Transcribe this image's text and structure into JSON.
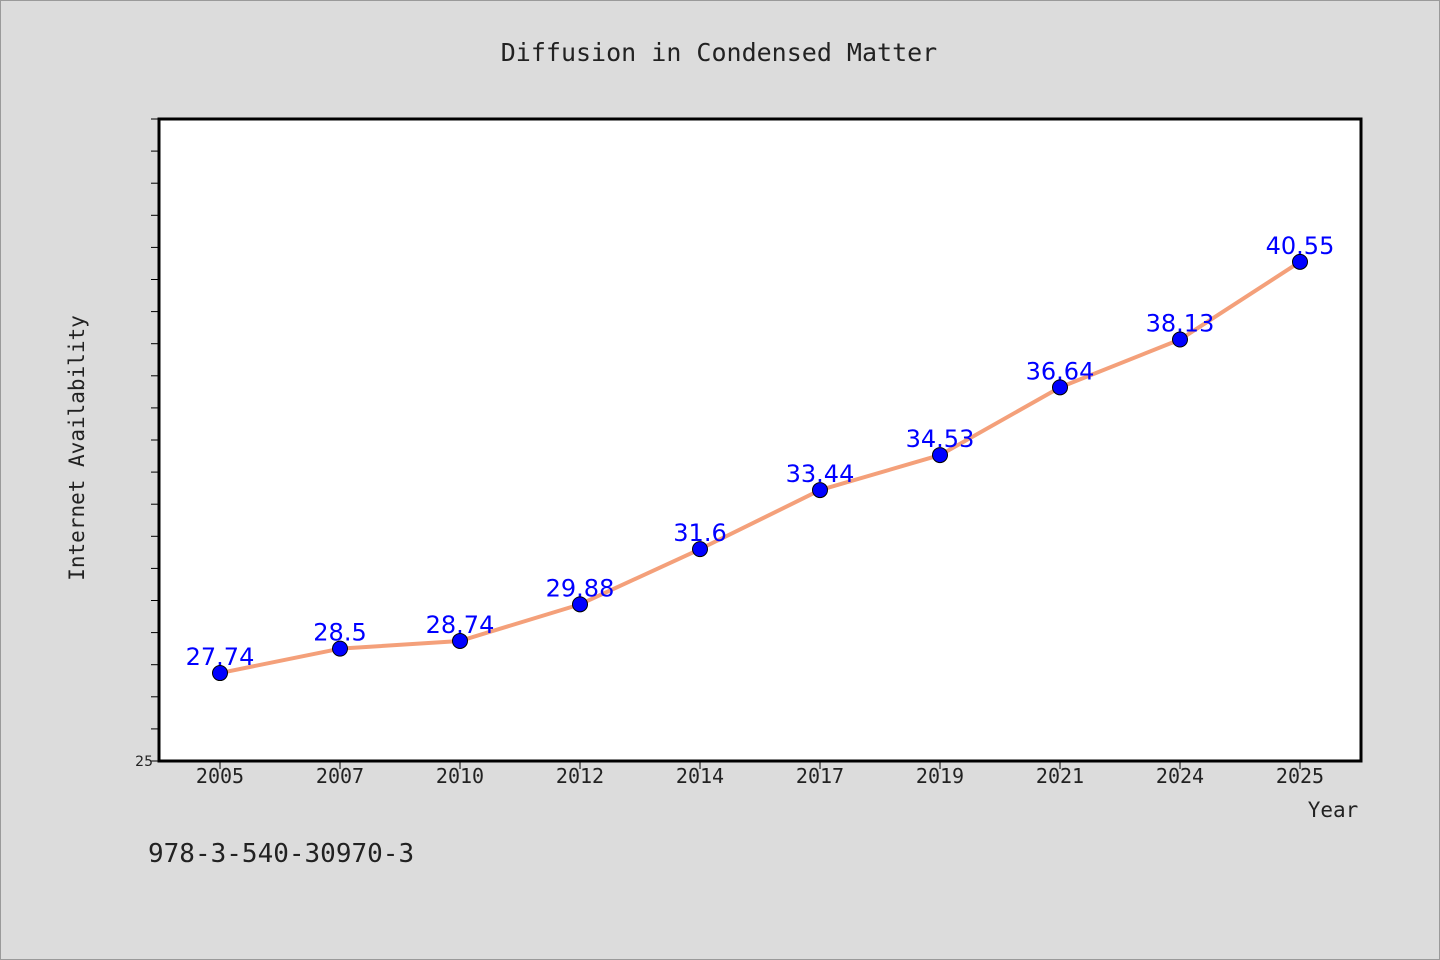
{
  "chart_data": {
    "type": "line",
    "title": "Diffusion in Condensed Matter",
    "xlabel": "Year",
    "ylabel": "Internet Availability",
    "categories": [
      "2005",
      "2007",
      "2010",
      "2012",
      "2014",
      "2017",
      "2019",
      "2021",
      "2024",
      "2025"
    ],
    "series": [
      {
        "values": [
          27.74,
          28.5,
          28.74,
          29.88,
          31.6,
          33.44,
          34.53,
          36.64,
          38.13,
          40.55
        ],
        "data_labels": [
          "27.74",
          "28.5",
          "28.74",
          "29.88",
          "31.6",
          "33.44",
          "34.53",
          "36.64",
          "38.13",
          "40.55"
        ],
        "line_color": "#f4a07a",
        "marker_color": "#0000ff"
      }
    ],
    "ylim": [
      25,
      45
    ],
    "y_tick_labels": [
      "25"
    ],
    "y_minor_step": 1,
    "grid": false,
    "legend": "none"
  },
  "footer": {
    "isbn": "978-3-540-30970-3"
  },
  "colors": {
    "background": "#dcdcdc",
    "plot_background": "#ffffff",
    "line": "#f4a07a",
    "marker": "#0000ff",
    "data_label": "#0000ff"
  }
}
